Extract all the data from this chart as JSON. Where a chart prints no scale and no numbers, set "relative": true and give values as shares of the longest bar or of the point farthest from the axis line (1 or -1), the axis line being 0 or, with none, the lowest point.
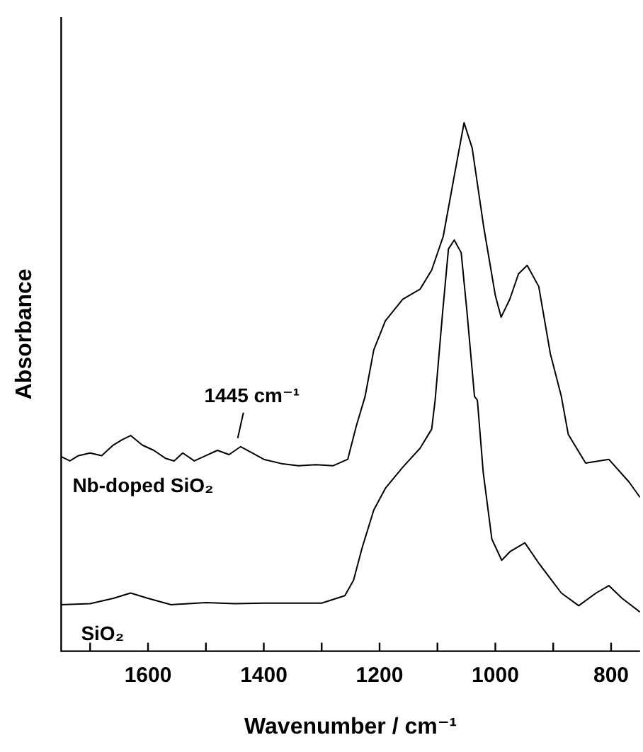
{
  "chart_data": {
    "type": "line",
    "xlabel": "Wavenumber / cm⁻¹",
    "ylabel": "Absorbance",
    "relative": true,
    "legend": false,
    "grid": false,
    "marker": "none",
    "xlim": [
      1750,
      750
    ],
    "xticks": [
      {
        "value": 1700,
        "label": null
      },
      1600,
      {
        "value": 1500,
        "label": null
      },
      1400,
      {
        "value": 1300,
        "label": null
      },
      1200,
      {
        "value": 1100,
        "label": null
      },
      1000,
      {
        "value": 900,
        "label": null
      },
      800
    ],
    "annotations": [
      {
        "text": "1445 cm⁻¹",
        "x": 1445,
        "y": 0.387
      }
    ],
    "series": [
      {
        "name": "Nb-doped SiO₂",
        "color": "#000000",
        "x": [
          1750,
          1735,
          1720,
          1700,
          1680,
          1660,
          1645,
          1630,
          1610,
          1590,
          1570,
          1555,
          1540,
          1520,
          1500,
          1480,
          1460,
          1440,
          1420,
          1400,
          1370,
          1340,
          1310,
          1280,
          1255,
          1240,
          1225,
          1210,
          1190,
          1160,
          1130,
          1110,
          1090,
          1070,
          1054,
          1040,
          1020,
          1000,
          990,
          975,
          960,
          945,
          925,
          905,
          886,
          874,
          844,
          804,
          769,
          750
        ],
        "values": [
          0.368,
          0.36,
          0.37,
          0.375,
          0.37,
          0.39,
          0.4,
          0.408,
          0.39,
          0.38,
          0.365,
          0.36,
          0.375,
          0.36,
          0.37,
          0.38,
          0.372,
          0.387,
          0.375,
          0.363,
          0.355,
          0.351,
          0.353,
          0.351,
          0.363,
          0.427,
          0.482,
          0.57,
          0.625,
          0.666,
          0.685,
          0.721,
          0.785,
          0.905,
          1,
          0.952,
          0.802,
          0.673,
          0.632,
          0.666,
          0.714,
          0.73,
          0.69,
          0.563,
          0.482,
          0.41,
          0.356,
          0.363,
          0.32,
          0.291
        ]
      },
      {
        "name": "SiO₂",
        "color": "#000000",
        "x": [
          1750,
          1700,
          1660,
          1630,
          1600,
          1560,
          1500,
          1450,
          1400,
          1300,
          1260,
          1245,
          1230,
          1210,
          1190,
          1160,
          1130,
          1110,
          1104,
          1091,
          1081,
          1071,
          1059,
          1049,
          1036,
          1031,
          1021,
          1006,
          989,
          974,
          949,
          924,
          886,
          856,
          826,
          804,
          781,
          750
        ],
        "values": [
          0.088,
          0.09,
          0.1,
          0.11,
          0.1,
          0.088,
          0.092,
          0.09,
          0.091,
          0.091,
          0.105,
          0.134,
          0.196,
          0.267,
          0.308,
          0.348,
          0.384,
          0.42,
          0.475,
          0.642,
          0.761,
          0.778,
          0.754,
          0.642,
          0.482,
          0.475,
          0.339,
          0.212,
          0.172,
          0.189,
          0.205,
          0.165,
          0.11,
          0.086,
          0.11,
          0.124,
          0.1,
          0.074
        ]
      }
    ]
  }
}
